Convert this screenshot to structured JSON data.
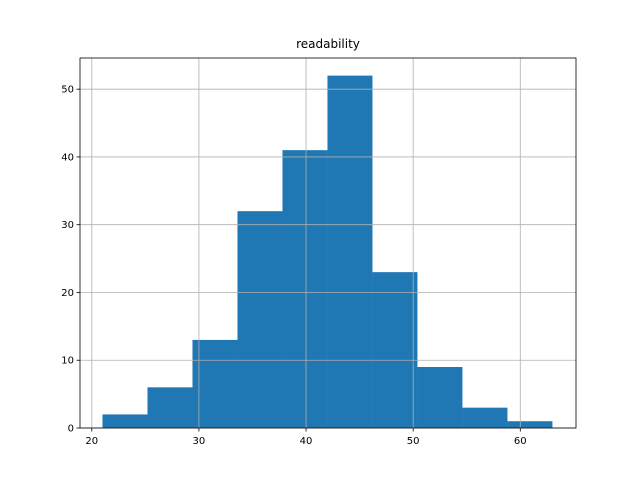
{
  "chart_data": {
    "type": "histogram",
    "title": "readability",
    "bins": [
      21,
      25.2,
      29.4,
      33.6,
      37.8,
      42,
      46.2,
      50.4,
      54.6,
      58.8,
      63
    ],
    "values": [
      2,
      6,
      13,
      32,
      41,
      52,
      23,
      9,
      3,
      1
    ],
    "color": "#1f77b4",
    "xlim": [
      18.9,
      65.2
    ],
    "xticks": [
      20,
      30,
      40,
      50,
      60
    ],
    "ylim": [
      0,
      54.6
    ],
    "yticks": [
      0,
      10,
      20,
      30,
      40,
      50
    ],
    "grid": true
  }
}
